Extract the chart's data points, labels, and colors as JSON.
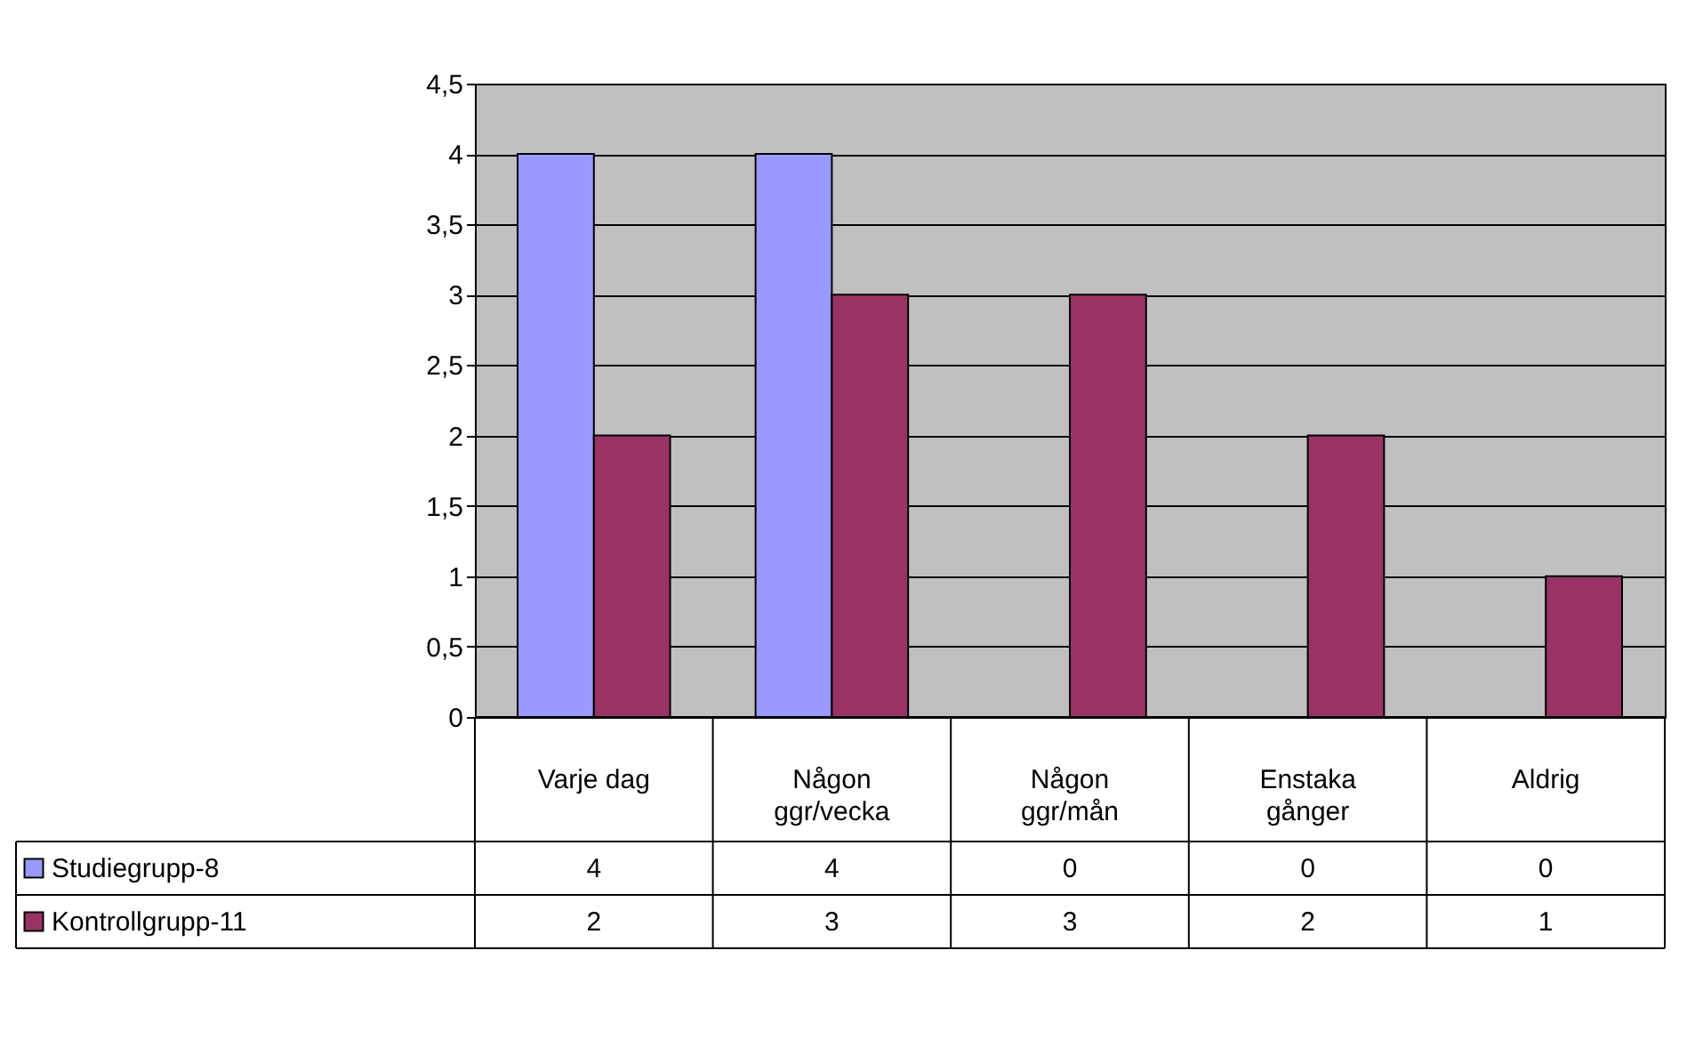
{
  "chart_data": {
    "type": "bar",
    "categories": [
      "Varje dag",
      "Någon ggr/vecka",
      "Någon ggr/mån",
      "Enstaka gånger",
      "Aldrig"
    ],
    "series": [
      {
        "name": "Studiegrupp-8",
        "color": "#9999ff",
        "values": [
          4,
          4,
          0,
          0,
          0
        ]
      },
      {
        "name": "Kontrollgrupp-11",
        "color": "#993366",
        "values": [
          2,
          3,
          3,
          2,
          1
        ]
      }
    ],
    "ylim": [
      0,
      4.5
    ],
    "yticks": [
      0,
      {
        "value": 0.5,
        "label": "0,5"
      },
      1,
      {
        "value": 1.5,
        "label": "1,5"
      },
      2,
      {
        "value": 2.5,
        "label": "2,5"
      },
      3,
      {
        "value": 3.5,
        "label": "3,5"
      },
      4,
      {
        "value": 4.5,
        "label": "4,5"
      }
    ],
    "grid": "y",
    "legend": "bottom",
    "data_labels": true
  }
}
